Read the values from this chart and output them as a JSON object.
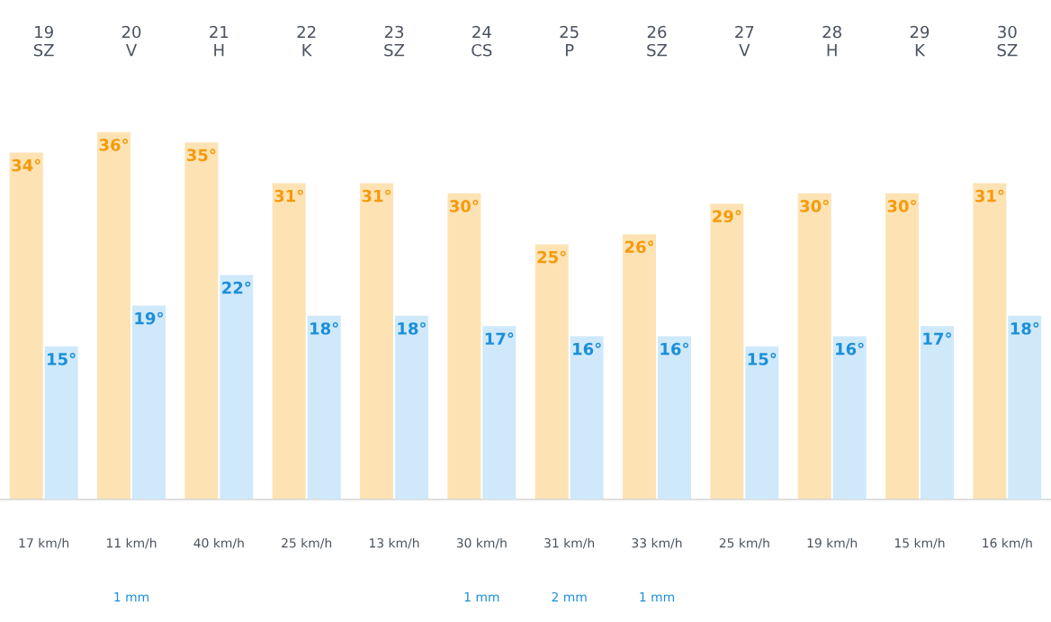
{
  "chart_data": {
    "type": "bar",
    "categories": [
      "19\nSZ",
      "20\nV",
      "21\nH",
      "22\nK",
      "23\nSZ",
      "24\nCS",
      "25\nP",
      "26\nSZ",
      "27\nV",
      "28\nH",
      "29\nK",
      "30\nSZ"
    ],
    "series": [
      {
        "color": "#fde3b4",
        "values": [
          34,
          36,
          35,
          31,
          31,
          30,
          25,
          26,
          29,
          30,
          30,
          31
        ],
        "value_labels": [
          "34°",
          "36°",
          "35°",
          "31°",
          "31°",
          "30°",
          "25°",
          "26°",
          "29°",
          "30°",
          "30°",
          "31°"
        ]
      },
      {
        "color": "#cfe9fb",
        "values": [
          15,
          19,
          22,
          18,
          18,
          17,
          16,
          16,
          15,
          16,
          17,
          18
        ],
        "value_labels": [
          "15°",
          "19°",
          "22°",
          "18°",
          "18°",
          "17°",
          "16°",
          "16°",
          "15°",
          "16°",
          "17°",
          "18°"
        ]
      }
    ],
    "tick_labels": "x",
    "annotations": [
      "17 km/h",
      "11 km/h\n1 mm",
      "40 km/h",
      "25 km/h",
      "13 km/h",
      "30 km/h\n1 mm",
      "31 km/h\n2 mm",
      "33 km/h\n1 mm",
      "25 km/h",
      "19 km/h",
      "15 km/h",
      "16 km/h"
    ]
  }
}
